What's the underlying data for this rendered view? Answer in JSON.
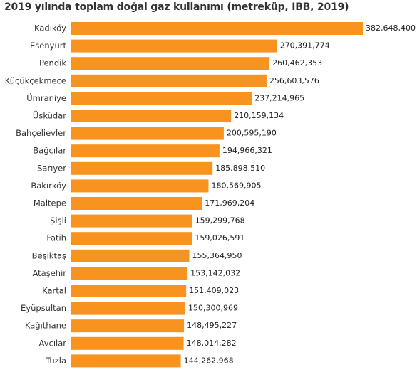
{
  "chart_data": {
    "type": "bar",
    "orientation": "horizontal",
    "title": "2019 yılında toplam doğal gaz kullanımı (metreküp, IBB, 2019)",
    "bar_color": "#f7931e",
    "categories": [
      "Kadıköy",
      "Esenyurt",
      "Pendik",
      "Küçükçekmece",
      "Ümraniye",
      "Üsküdar",
      "Bahçelievler",
      "Bağcılar",
      "Sarıyer",
      "Bakırköy",
      "Maltepe",
      "Şişli",
      "Fatih",
      "Beşiktaş",
      "Ataşehir",
      "Kartal",
      "Eyüpsultan",
      "Kağıthane",
      "Avcılar",
      "Tuzla"
    ],
    "values": [
      382648400,
      270391774,
      260462353,
      256603576,
      237214965,
      210159134,
      200595190,
      194966321,
      185898510,
      180569905,
      171969204,
      159299768,
      159026591,
      155364950,
      153142032,
      151409023,
      150300969,
      148495227,
      148014282,
      144262968
    ],
    "value_labels": [
      "382,648,400",
      "270,391,774",
      "260,462,353",
      "256,603,576",
      "237,214,965",
      "210,159,134",
      "200,595,190",
      "194,966,321",
      "185,898,510",
      "180,569,905",
      "171,969,204",
      "159,299,768",
      "159,026,591",
      "155,364,950",
      "153,142,032",
      "151,409,023",
      "150,300,969",
      "148,495,227",
      "148,014,282",
      "144,262,968"
    ],
    "grid": false,
    "legend": "none"
  }
}
